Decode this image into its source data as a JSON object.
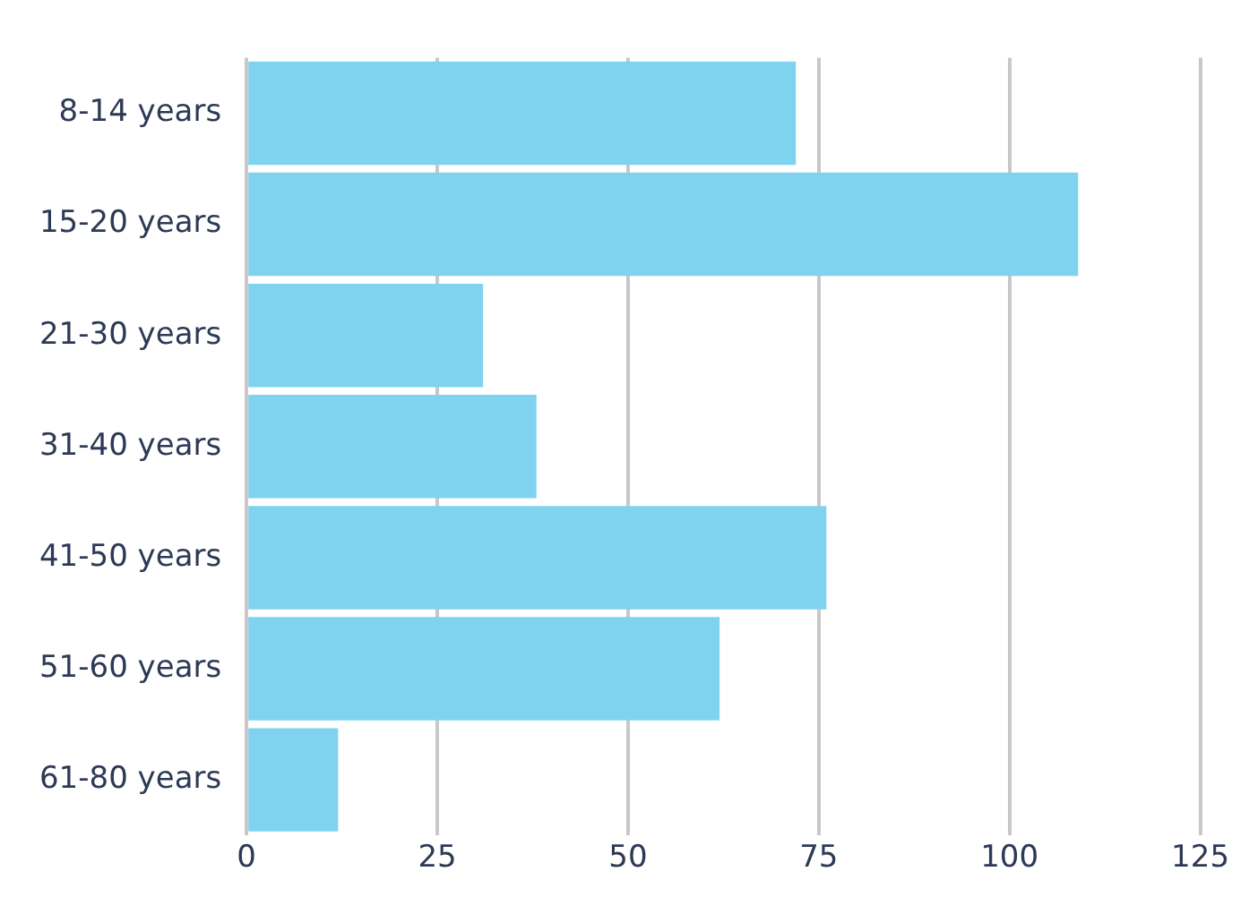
{
  "chart_data": {
    "type": "bar",
    "orientation": "horizontal",
    "categories": [
      "8-14 years",
      "15-20 years",
      "21-30 years",
      "31-40 years",
      "41-50 years",
      "51-60 years",
      "61-80 years"
    ],
    "values": [
      72,
      109,
      31,
      38,
      76,
      62,
      12
    ],
    "color": "#7fd3ee",
    "xlim": [
      0,
      125
    ],
    "xticks": [
      0,
      25,
      50,
      75,
      100,
      125
    ],
    "grid": "x",
    "legend": false
  }
}
